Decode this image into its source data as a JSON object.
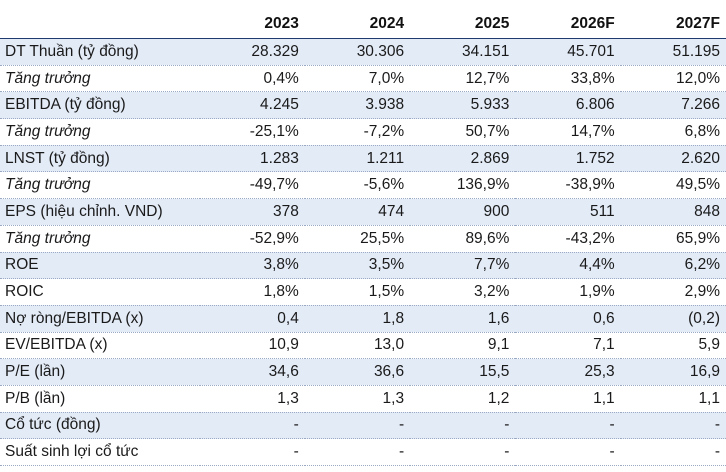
{
  "table": {
    "columns": [
      "",
      "2023",
      "2024",
      "2025",
      "2026F",
      "2027F"
    ],
    "rows": [
      {
        "label": "DT Thuần (tỷ đồng)",
        "values": [
          "28.329",
          "30.306",
          "34.151",
          "45.701",
          "51.195"
        ],
        "style": "shaded"
      },
      {
        "label": "Tăng trưởng",
        "values": [
          "0,4%",
          "7,0%",
          "12,7%",
          "33,8%",
          "12,0%"
        ],
        "style": "growth"
      },
      {
        "label": "EBITDA (tỷ đồng)",
        "values": [
          "4.245",
          "3.938",
          "5.933",
          "6.806",
          "7.266"
        ],
        "style": "shaded"
      },
      {
        "label": "Tăng trưởng",
        "values": [
          "-25,1%",
          "-7,2%",
          "50,7%",
          "14,7%",
          "6,8%"
        ],
        "style": "growth"
      },
      {
        "label": "LNST (tỷ đồng)",
        "values": [
          "1.283",
          "1.211",
          "2.869",
          "1.752",
          "2.620"
        ],
        "style": "shaded"
      },
      {
        "label": "Tăng trưởng",
        "values": [
          "-49,7%",
          "-5,6%",
          "136,9%",
          "-38,9%",
          "49,5%"
        ],
        "style": "growth"
      },
      {
        "label": "EPS (hiệu chỉnh. VND)",
        "values": [
          "378",
          "474",
          "900",
          "511",
          "848"
        ],
        "style": "shaded"
      },
      {
        "label": "Tăng trưởng",
        "values": [
          "-52,9%",
          "25,5%",
          "89,6%",
          "-43,2%",
          "65,9%"
        ],
        "style": "growth"
      },
      {
        "label": "ROE",
        "values": [
          "3,8%",
          "3,5%",
          "7,7%",
          "4,4%",
          "6,2%"
        ],
        "style": "shaded"
      },
      {
        "label": "ROIC",
        "values": [
          "1,8%",
          "1,5%",
          "3,2%",
          "1,9%",
          "2,9%"
        ],
        "style": "plain"
      },
      {
        "label": "Nợ ròng/EBITDA (x)",
        "values": [
          "0,4",
          "1,8",
          "1,6",
          "0,6",
          "(0,2)"
        ],
        "style": "shaded"
      },
      {
        "label": "EV/EBITDA (x)",
        "values": [
          "10,9",
          "13,0",
          "9,1",
          "7,1",
          "5,9"
        ],
        "style": "plain"
      },
      {
        "label": "P/E (lần)",
        "values": [
          "34,6",
          "36,6",
          "15,5",
          "25,3",
          "16,9"
        ],
        "style": "shaded"
      },
      {
        "label": "P/B (lần)",
        "values": [
          "1,3",
          "1,3",
          "1,2",
          "1,1",
          "1,1"
        ],
        "style": "plain"
      },
      {
        "label": "Cổ tức (đồng)",
        "values": [
          "-",
          "-",
          "-",
          "-",
          "-"
        ],
        "style": "shaded"
      },
      {
        "label": "Suất sinh lợi cổ tức",
        "values": [
          "-",
          "-",
          "-",
          "-",
          "-"
        ],
        "style": "plain"
      }
    ]
  }
}
